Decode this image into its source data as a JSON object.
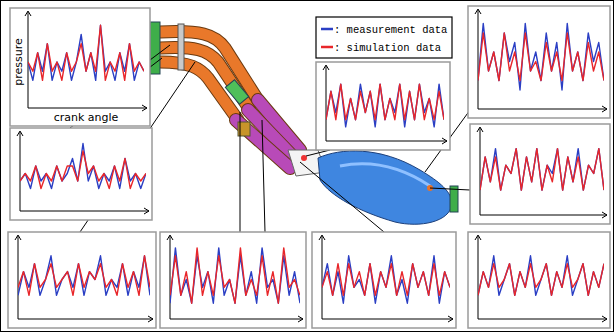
{
  "chart_data": [
    {
      "type": "line",
      "y_label": "pressure",
      "x_label": "crank angle",
      "tick_labels": false,
      "x": [
        0,
        30,
        60,
        90,
        120,
        150,
        180,
        210,
        240,
        270,
        300,
        330,
        360,
        390,
        420,
        450,
        480,
        510,
        540,
        570,
        600,
        630,
        660,
        690,
        720
      ],
      "xlim": [
        0,
        720
      ],
      "ylim": [
        0,
        10
      ],
      "series": [
        {
          "name": ": measurement data",
          "color": "#2b3fc4",
          "values": [
            5,
            3,
            6,
            4,
            7,
            3,
            5,
            4,
            6,
            3,
            5,
            8,
            4,
            6,
            3,
            9,
            4,
            5,
            3,
            6,
            4,
            7,
            3,
            5,
            4
          ]
        },
        {
          "name": ": simulation data",
          "color": "#e8262a",
          "values": [
            5,
            4,
            6,
            3,
            7,
            4,
            5,
            3,
            6,
            4,
            5,
            7,
            4,
            6,
            4,
            9,
            3,
            5,
            4,
            6,
            3,
            7,
            4,
            5,
            4
          ]
        }
      ]
    },
    {
      "type": "line",
      "tick_labels": false,
      "x": [
        0,
        30,
        60,
        90,
        120,
        150,
        180,
        210,
        240,
        270,
        300,
        330,
        360,
        390,
        420,
        450,
        480,
        510,
        540,
        570,
        600,
        630,
        660,
        690,
        720
      ],
      "xlim": [
        0,
        720
      ],
      "ylim": [
        0,
        10
      ],
      "series": [
        {
          "color": "#2b3fc4",
          "values": [
            4,
            5,
            3,
            6,
            4,
            5,
            3,
            6,
            4,
            5,
            7,
            4,
            9,
            4,
            6,
            3,
            5,
            4,
            6,
            3,
            7,
            4,
            5,
            3,
            5
          ]
        },
        {
          "color": "#e8262a",
          "values": [
            4,
            5,
            4,
            6,
            3,
            5,
            4,
            6,
            4,
            6,
            6,
            4,
            8,
            5,
            6,
            4,
            5,
            3,
            6,
            4,
            7,
            3,
            5,
            4,
            5
          ]
        }
      ]
    },
    {
      "type": "line",
      "tick_labels": false,
      "x": [
        0,
        30,
        60,
        90,
        120,
        150,
        180,
        210,
        240,
        270,
        300,
        330,
        360,
        390,
        420,
        450,
        480,
        510,
        540,
        570,
        600,
        630,
        660,
        690,
        720
      ],
      "xlim": [
        0,
        720
      ],
      "ylim": [
        0,
        10
      ],
      "series": [
        {
          "color": "#2b3fc4",
          "values": [
            3,
            6,
            4,
            7,
            3,
            5,
            8,
            3,
            5,
            6,
            4,
            7,
            3,
            6,
            5,
            8,
            3,
            5,
            4,
            7,
            3,
            6,
            4,
            8,
            3
          ]
        },
        {
          "color": "#e8262a",
          "values": [
            4,
            6,
            3,
            7,
            4,
            5,
            7,
            4,
            5,
            6,
            3,
            7,
            4,
            6,
            5,
            7,
            4,
            5,
            3,
            7,
            4,
            6,
            3,
            8,
            4
          ]
        }
      ]
    },
    {
      "type": "line",
      "tick_labels": false,
      "x": [
        0,
        30,
        60,
        90,
        120,
        150,
        180,
        210,
        240,
        270,
        300,
        330,
        360,
        390,
        420,
        450,
        480,
        510,
        540,
        570,
        600,
        630,
        660,
        690,
        720
      ],
      "xlim": [
        0,
        720
      ],
      "ylim": [
        0,
        10
      ],
      "series": [
        {
          "color": "#2b3fc4",
          "values": [
            2,
            9,
            3,
            5,
            2,
            8,
            4,
            6,
            2,
            9,
            3,
            5,
            2,
            8,
            3,
            6,
            2,
            9,
            4,
            5,
            2,
            8,
            3,
            6,
            2
          ]
        },
        {
          "color": "#e8262a",
          "values": [
            3,
            8,
            3,
            6,
            2,
            9,
            3,
            6,
            3,
            8,
            4,
            5,
            2,
            9,
            3,
            5,
            3,
            8,
            3,
            6,
            2,
            9,
            4,
            5,
            3
          ]
        }
      ]
    },
    {
      "type": "line",
      "tick_labels": false,
      "x": [
        0,
        30,
        60,
        90,
        120,
        150,
        180,
        210,
        240,
        270,
        300,
        330,
        360,
        390,
        420,
        450,
        480,
        510,
        540,
        570,
        600,
        630,
        660,
        690,
        720
      ],
      "xlim": [
        0,
        720
      ],
      "ylim": [
        0,
        10
      ],
      "series": [
        {
          "color": "#2b3fc4",
          "values": [
            4,
            7,
            3,
            6,
            2,
            8,
            4,
            5,
            3,
            7,
            2,
            6,
            4,
            8,
            3,
            5,
            2,
            7,
            4,
            6,
            3,
            8,
            2,
            6,
            4
          ]
        },
        {
          "color": "#e8262a",
          "values": [
            4,
            6,
            3,
            7,
            3,
            7,
            4,
            6,
            3,
            7,
            3,
            6,
            4,
            7,
            3,
            6,
            3,
            7,
            4,
            6,
            3,
            7,
            3,
            6,
            4
          ]
        }
      ]
    },
    {
      "type": "line",
      "tick_labels": false,
      "x": [
        0,
        30,
        60,
        90,
        120,
        150,
        180,
        210,
        240,
        270,
        300,
        330,
        360,
        390,
        420,
        450,
        480,
        510,
        540,
        570,
        600,
        630,
        660,
        690,
        720
      ],
      "xlim": [
        0,
        720
      ],
      "ylim": [
        0,
        10
      ],
      "series": [
        {
          "color": "#2b3fc4",
          "values": [
            3,
            6,
            4,
            8,
            3,
            5,
            7,
            3,
            6,
            4,
            8,
            3,
            5,
            7,
            3,
            6,
            4,
            8,
            3,
            5,
            7,
            3,
            6,
            4,
            7
          ]
        },
        {
          "color": "#e8262a",
          "values": [
            3,
            6,
            4,
            7,
            4,
            5,
            7,
            3,
            6,
            4,
            7,
            4,
            5,
            7,
            3,
            6,
            4,
            7,
            4,
            5,
            7,
            3,
            6,
            4,
            7
          ]
        }
      ]
    },
    {
      "type": "line",
      "tick_labels": false,
      "x": [
        0,
        30,
        60,
        90,
        120,
        150,
        180,
        210,
        240,
        270,
        300,
        330,
        360,
        390,
        420,
        450,
        480,
        510,
        540,
        570,
        600,
        630,
        660,
        690,
        720
      ],
      "xlim": [
        0,
        720
      ],
      "ylim": [
        0,
        10
      ],
      "series": [
        {
          "color": "#2b3fc4",
          "values": [
            3,
            7,
            4,
            8,
            3,
            6,
            5,
            8,
            3,
            7,
            4,
            8,
            3,
            6,
            5,
            8,
            3,
            7,
            4,
            8,
            3,
            6,
            5,
            8,
            3
          ]
        },
        {
          "color": "#e8262a",
          "values": [
            3,
            7,
            4,
            7,
            3,
            6,
            5,
            8,
            3,
            7,
            4,
            8,
            3,
            6,
            4,
            8,
            3,
            7,
            4,
            7,
            3,
            6,
            5,
            8,
            3
          ]
        }
      ]
    },
    {
      "type": "line",
      "tick_labels": false,
      "x": [
        0,
        30,
        60,
        90,
        120,
        150,
        180,
        210,
        240,
        270,
        300,
        330,
        360,
        390,
        420,
        450,
        480,
        510,
        540,
        570,
        600,
        630,
        660,
        690,
        720
      ],
      "xlim": [
        0,
        720
      ],
      "ylim": [
        0,
        10
      ],
      "series": [
        {
          "color": "#2b3fc4",
          "values": [
            3,
            9,
            4,
            6,
            3,
            8,
            5,
            7,
            2,
            9,
            4,
            6,
            3,
            8,
            4,
            7,
            2,
            9,
            4,
            6,
            3,
            8,
            5,
            7,
            3
          ]
        },
        {
          "color": "#e8262a",
          "values": [
            3,
            8,
            4,
            6,
            3,
            8,
            4,
            6,
            3,
            8,
            4,
            5,
            3,
            7,
            4,
            6,
            3,
            8,
            4,
            6,
            3,
            7,
            4,
            6,
            3
          ]
        }
      ]
    },
    {
      "type": "line",
      "tick_labels": false,
      "x": [
        0,
        30,
        60,
        90,
        120,
        150,
        180,
        210,
        240,
        270,
        300,
        330,
        360,
        390,
        420,
        450,
        480,
        510,
        540,
        570,
        600,
        630,
        660,
        690,
        720
      ],
      "xlim": [
        0,
        720
      ],
      "ylim": [
        0,
        10
      ],
      "series": [
        {
          "color": "#2b3fc4",
          "values": [
            3,
            7,
            4,
            8,
            2,
            6,
            3,
            8,
            4,
            7,
            2,
            8,
            3,
            6,
            4,
            8,
            2,
            7,
            3,
            8,
            4,
            6,
            2,
            8,
            3
          ]
        },
        {
          "color": "#e8262a",
          "values": [
            3,
            7,
            3,
            8,
            3,
            6,
            3,
            7,
            4,
            7,
            3,
            8,
            3,
            6,
            3,
            8,
            3,
            7,
            3,
            8,
            3,
            6,
            3,
            7,
            3
          ]
        }
      ]
    }
  ]
}
